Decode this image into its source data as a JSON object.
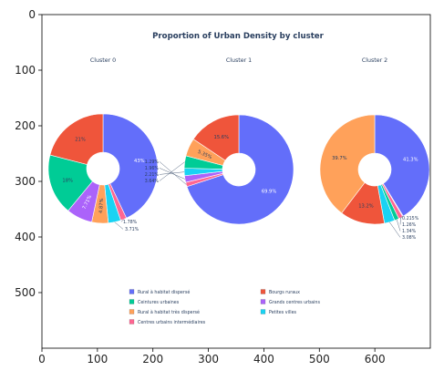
{
  "chart_data": {
    "type": "pie",
    "title": "Proportion of Urban Density by cluster",
    "legend_position": "bottom-center",
    "axes": {
      "x_ticks": [
        "0",
        "100",
        "200",
        "300",
        "400",
        "500",
        "600"
      ],
      "y_ticks": [
        "0",
        "100",
        "200",
        "300",
        "400",
        "500"
      ],
      "xlim": [
        0,
        700
      ],
      "ylim": [
        600,
        0
      ]
    },
    "categories": [
      "Rural à habitat dispersé",
      "Bourgs ruraux",
      "Ceintures urbaines",
      "Grands centres urbains",
      "Rural à habitat très dispersé",
      "Petites villes",
      "Centres urbains intermédiaires"
    ],
    "colors": {
      "Rural à habitat dispersé": "#636efa",
      "Bourgs ruraux": "#ef553b",
      "Ceintures urbaines": "#00cc96",
      "Grands centres urbains": "#ab63fa",
      "Rural à habitat très dispersé": "#ffa15a",
      "Petites villes": "#19d3f3",
      "Centres urbains intermédiaires": "#ff6692"
    },
    "pies": [
      {
        "name": "Cluster 0",
        "slices": [
          {
            "category": "Rural à habitat dispersé",
            "value": 43,
            "label": "43%",
            "inside": true
          },
          {
            "category": "Centres urbains intermédiaires",
            "value": 1.78,
            "label": "1.78%",
            "inside": false
          },
          {
            "category": "Petites villes",
            "value": 3.71,
            "label": "3.71%",
            "inside": false
          },
          {
            "category": "Rural à habitat très dispersé",
            "value": 4.87,
            "label": "4.87%",
            "inside": true
          },
          {
            "category": "Grands centres urbains",
            "value": 7.71,
            "label": "7.71%",
            "inside": true
          },
          {
            "category": "Ceintures urbaines",
            "value": 18,
            "label": "18%",
            "inside": true
          },
          {
            "category": "Bourgs ruraux",
            "value": 21,
            "label": "21%",
            "inside": true
          }
        ]
      },
      {
        "name": "Cluster 1",
        "slices": [
          {
            "category": "Rural à habitat dispersé",
            "value": 69.9,
            "label": "69.9%",
            "inside": true
          },
          {
            "category": "Centres urbains intermédiaires",
            "value": 1.29,
            "label": "1.29%",
            "inside": false
          },
          {
            "category": "Grands centres urbains",
            "value": 1.96,
            "label": "1.96%",
            "inside": false
          },
          {
            "category": "Petites villes",
            "value": 2.21,
            "label": "2.21%",
            "inside": false
          },
          {
            "category": "Ceintures urbaines",
            "value": 3.64,
            "label": "3.64%",
            "inside": false
          },
          {
            "category": "Rural à habitat très dispersé",
            "value": 5.35,
            "label": "5.35%",
            "inside": true
          },
          {
            "category": "Bourgs ruraux",
            "value": 15.6,
            "label": "15.6%",
            "inside": true
          }
        ]
      },
      {
        "name": "Cluster 2",
        "slices": [
          {
            "category": "Rural à habitat dispersé",
            "value": 41.3,
            "label": "41.3%",
            "inside": true
          },
          {
            "category": "Grands centres urbains",
            "value": 0.215,
            "label": "0.215%",
            "inside": false
          },
          {
            "category": "Centres urbains intermédiaires",
            "value": 1.26,
            "label": "1.26%",
            "inside": false
          },
          {
            "category": "Ceintures urbaines",
            "value": 1.34,
            "label": "1.34%",
            "inside": false
          },
          {
            "category": "Petites villes",
            "value": 3.08,
            "label": "3.08%",
            "inside": false
          },
          {
            "category": "Bourgs ruraux",
            "value": 13.2,
            "label": "13.2%",
            "inside": true
          },
          {
            "category": "Rural à habitat très dispersé",
            "value": 39.7,
            "label": "39.7%",
            "inside": true
          }
        ]
      }
    ],
    "legend": [
      "Rural à habitat dispersé",
      "Ceintures urbaines",
      "Rural à habitat très dispersé",
      "Centres urbains intermédiaires",
      "Bourgs ruraux",
      "Grands centres urbains",
      "Petites villes"
    ]
  }
}
